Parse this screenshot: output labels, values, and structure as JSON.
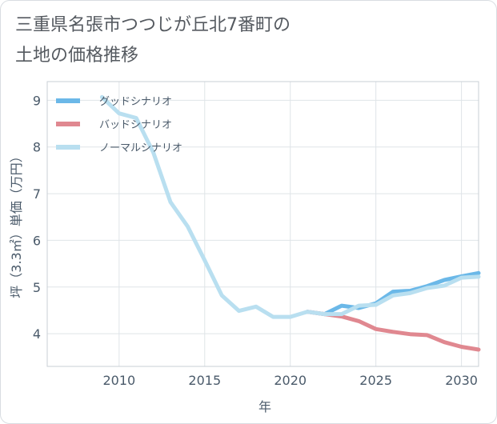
{
  "title_lines": [
    "三重県名張市つつじが丘北7番町の",
    "土地の価格推移"
  ],
  "chart_data": {
    "type": "line",
    "xlabel": "年",
    "ylabel": "坪（3.3㎡）単価（万円）",
    "xlim": [
      2005.8,
      2031
    ],
    "ylim": [
      3.3,
      9.4
    ],
    "xticks": [
      2010,
      2015,
      2020,
      2025,
      2030
    ],
    "yticks": [
      4,
      5,
      6,
      7,
      8,
      9
    ],
    "grid": true,
    "legend_position": "top-left",
    "series": [
      {
        "name": "グッドシナリオ",
        "color": "#6bb8e8",
        "x": [
          2021,
          2022,
          2023,
          2024,
          2025,
          2026,
          2027,
          2028,
          2029,
          2030,
          2031
        ],
        "y": [
          4.47,
          4.42,
          4.6,
          4.55,
          4.65,
          4.9,
          4.92,
          5.02,
          5.15,
          5.23,
          5.3
        ]
      },
      {
        "name": "バッドシナリオ",
        "color": "#e08890",
        "x": [
          2021,
          2022,
          2023,
          2024,
          2025,
          2026,
          2027,
          2028,
          2029,
          2030,
          2031
        ],
        "y": [
          4.47,
          4.42,
          4.37,
          4.27,
          4.1,
          4.04,
          3.99,
          3.97,
          3.82,
          3.72,
          3.66
        ]
      },
      {
        "name": "ノーマルシナリオ",
        "color": "#b9dff0",
        "x": [
          2009,
          2010,
          2011,
          2012,
          2013,
          2014,
          2015,
          2016,
          2017,
          2018,
          2019,
          2020,
          2021,
          2022,
          2023,
          2024,
          2025,
          2026,
          2027,
          2028,
          2029,
          2030,
          2031
        ],
        "y": [
          9.07,
          8.72,
          8.62,
          7.88,
          6.82,
          6.3,
          5.57,
          4.82,
          4.49,
          4.58,
          4.36,
          4.36,
          4.47,
          4.42,
          4.42,
          4.6,
          4.62,
          4.82,
          4.87,
          4.98,
          5.03,
          5.2,
          5.22
        ]
      }
    ]
  }
}
